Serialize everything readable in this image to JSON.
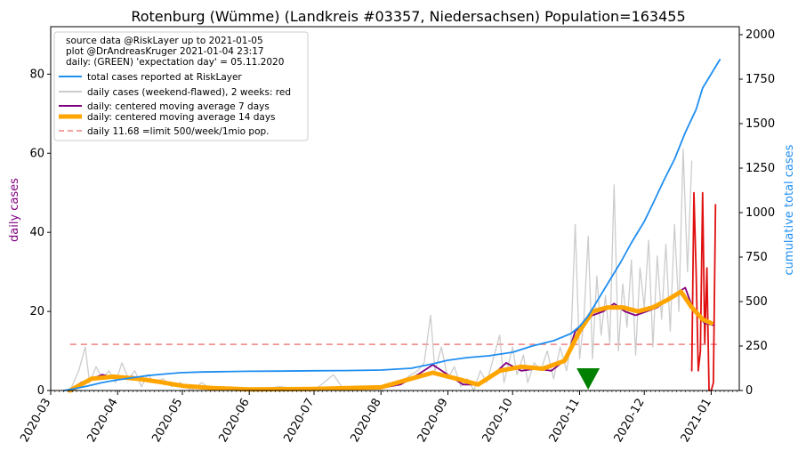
{
  "chart_data": {
    "type": "line",
    "title": "Rotenburg (Wümme) (Landkreis #03357, Niedersachsen) Population=163455",
    "ylabel_left": "daily cases",
    "ylabel_right": "cumulative total cases",
    "xlabel": "",
    "x_start": "2020-03-01",
    "x_end": "2021-01-14",
    "ylim_left": [
      0,
      92
    ],
    "ylim_right": [
      0,
      2045
    ],
    "yticks_left": [
      0,
      20,
      40,
      60,
      80
    ],
    "yticks_right": [
      0,
      250,
      500,
      750,
      1000,
      1250,
      1500,
      1750,
      2000
    ],
    "xticks": [
      "2020-03",
      "2020-04",
      "2020-05",
      "2020-06",
      "2020-07",
      "2020-08",
      "2020-09",
      "2020-10",
      "2020-11",
      "2020-12",
      "2021-01"
    ],
    "legend_position": "top-left",
    "legend_header": [
      "source data @RiskLayer up to 2021-01-05",
      "plot @DrAndreasKruger 2021-01-04 23:17",
      "daily: (GREEN) 'expectation day' = 05.11.2020"
    ],
    "legend": [
      {
        "label": "total cases reported at RiskLayer",
        "color": "#1f8ef1",
        "style": "line"
      },
      {
        "label": "daily cases (weekend-flawed), 2 weeks: red",
        "color": "#cccccc",
        "style": "line"
      },
      {
        "label": "daily: centered moving average 7 days",
        "color": "#800080",
        "style": "line"
      },
      {
        "label": "daily: centered moving average 14 days",
        "color": "#ffa500",
        "style": "thick"
      },
      {
        "label": "daily 11.68 =limit 500/week/1mio pop.",
        "color": "#f08080",
        "style": "dashed"
      }
    ],
    "limit_value": 11.68,
    "expectation_day": "2020-11-05",
    "expectation_marker_color": "#008000",
    "series": [
      {
        "name": "total cases reported at RiskLayer",
        "axis": "right",
        "color": "#1f8ef1",
        "points": [
          [
            "2020-03-07",
            0
          ],
          [
            "2020-03-12",
            10
          ],
          [
            "2020-03-18",
            25
          ],
          [
            "2020-03-25",
            45
          ],
          [
            "2020-04-01",
            60
          ],
          [
            "2020-04-08",
            72
          ],
          [
            "2020-04-15",
            84
          ],
          [
            "2020-04-22",
            92
          ],
          [
            "2020-04-30",
            100
          ],
          [
            "2020-05-10",
            104
          ],
          [
            "2020-05-20",
            106
          ],
          [
            "2020-06-01",
            108
          ],
          [
            "2020-06-15",
            109
          ],
          [
            "2020-07-01",
            111
          ],
          [
            "2020-07-15",
            112
          ],
          [
            "2020-08-01",
            115
          ],
          [
            "2020-08-15",
            125
          ],
          [
            "2020-08-25",
            150
          ],
          [
            "2020-09-01",
            170
          ],
          [
            "2020-09-10",
            185
          ],
          [
            "2020-09-20",
            195
          ],
          [
            "2020-10-01",
            215
          ],
          [
            "2020-10-10",
            250
          ],
          [
            "2020-10-20",
            280
          ],
          [
            "2020-10-28",
            320
          ],
          [
            "2020-11-01",
            360
          ],
          [
            "2020-11-05",
            420
          ],
          [
            "2020-11-10",
            520
          ],
          [
            "2020-11-15",
            620
          ],
          [
            "2020-11-20",
            720
          ],
          [
            "2020-11-25",
            830
          ],
          [
            "2020-12-01",
            950
          ],
          [
            "2020-12-05",
            1050
          ],
          [
            "2020-12-10",
            1180
          ],
          [
            "2020-12-15",
            1300
          ],
          [
            "2020-12-20",
            1450
          ],
          [
            "2020-12-25",
            1580
          ],
          [
            "2020-12-28",
            1700
          ],
          [
            "2021-01-01",
            1780
          ],
          [
            "2021-01-03",
            1820
          ],
          [
            "2021-01-05",
            1860
          ]
        ]
      },
      {
        "name": "daily cases (weekend-flawed), 2 weeks: red",
        "axis": "left",
        "color": "#cccccc",
        "red_from": "2020-12-22",
        "points": [
          [
            "2020-03-10",
            0
          ],
          [
            "2020-03-14",
            5
          ],
          [
            "2020-03-17",
            11
          ],
          [
            "2020-03-19",
            2
          ],
          [
            "2020-03-22",
            6
          ],
          [
            "2020-03-25",
            3
          ],
          [
            "2020-03-28",
            5
          ],
          [
            "2020-03-31",
            2
          ],
          [
            "2020-04-03",
            7
          ],
          [
            "2020-04-06",
            3
          ],
          [
            "2020-04-09",
            5
          ],
          [
            "2020-04-12",
            1
          ],
          [
            "2020-04-15",
            4
          ],
          [
            "2020-04-18",
            2
          ],
          [
            "2020-04-22",
            3
          ],
          [
            "2020-04-26",
            1
          ],
          [
            "2020-04-30",
            2
          ],
          [
            "2020-05-05",
            0
          ],
          [
            "2020-05-10",
            2
          ],
          [
            "2020-05-15",
            0
          ],
          [
            "2020-05-20",
            1
          ],
          [
            "2020-06-01",
            0
          ],
          [
            "2020-06-15",
            1
          ],
          [
            "2020-07-01",
            0
          ],
          [
            "2020-07-10",
            4
          ],
          [
            "2020-07-15",
            0
          ],
          [
            "2020-08-01",
            1
          ],
          [
            "2020-08-10",
            2
          ],
          [
            "2020-08-15",
            4
          ],
          [
            "2020-08-18",
            5
          ],
          [
            "2020-08-21",
            7
          ],
          [
            "2020-08-24",
            19
          ],
          [
            "2020-08-26",
            5
          ],
          [
            "2020-08-29",
            11
          ],
          [
            "2020-09-01",
            3
          ],
          [
            "2020-09-04",
            6
          ],
          [
            "2020-09-07",
            1
          ],
          [
            "2020-09-10",
            3
          ],
          [
            "2020-09-13",
            0
          ],
          [
            "2020-09-16",
            5
          ],
          [
            "2020-09-19",
            2
          ],
          [
            "2020-09-22",
            8
          ],
          [
            "2020-09-25",
            14
          ],
          [
            "2020-09-27",
            2
          ],
          [
            "2020-10-01",
            11
          ],
          [
            "2020-10-03",
            4
          ],
          [
            "2020-10-06",
            9
          ],
          [
            "2020-10-08",
            2
          ],
          [
            "2020-10-11",
            7
          ],
          [
            "2020-10-14",
            5
          ],
          [
            "2020-10-17",
            10
          ],
          [
            "2020-10-20",
            3
          ],
          [
            "2020-10-23",
            11
          ],
          [
            "2020-10-26",
            5
          ],
          [
            "2020-10-28",
            12
          ],
          [
            "2020-10-30",
            42
          ],
          [
            "2020-11-01",
            8
          ],
          [
            "2020-11-03",
            18
          ],
          [
            "2020-11-05",
            39
          ],
          [
            "2020-11-07",
            8
          ],
          [
            "2020-11-09",
            29
          ],
          [
            "2020-11-11",
            14
          ],
          [
            "2020-11-13",
            24
          ],
          [
            "2020-11-15",
            12
          ],
          [
            "2020-11-17",
            52
          ],
          [
            "2020-11-19",
            10
          ],
          [
            "2020-11-21",
            27
          ],
          [
            "2020-11-23",
            16
          ],
          [
            "2020-11-25",
            33
          ],
          [
            "2020-11-27",
            9
          ],
          [
            "2020-11-29",
            31
          ],
          [
            "2020-12-01",
            21
          ],
          [
            "2020-12-03",
            38
          ],
          [
            "2020-12-05",
            11
          ],
          [
            "2020-12-07",
            34
          ],
          [
            "2020-12-09",
            18
          ],
          [
            "2020-12-11",
            37
          ],
          [
            "2020-12-13",
            15
          ],
          [
            "2020-12-15",
            42
          ],
          [
            "2020-12-17",
            20
          ],
          [
            "2020-12-19",
            61
          ],
          [
            "2020-12-21",
            30
          ],
          [
            "2020-12-23",
            58
          ]
        ]
      },
      {
        "name": "daily red (last two weeks)",
        "axis": "left",
        "color": "#e01010",
        "points": [
          [
            "2020-12-23",
            5
          ],
          [
            "2020-12-24",
            50
          ],
          [
            "2020-12-25",
            30
          ],
          [
            "2020-12-26",
            5
          ],
          [
            "2020-12-27",
            10
          ],
          [
            "2020-12-28",
            50
          ],
          [
            "2020-12-29",
            12
          ],
          [
            "2020-12-30",
            31
          ],
          [
            "2020-12-31",
            0
          ],
          [
            "2021-01-01",
            0
          ],
          [
            "2021-01-02",
            2
          ],
          [
            "2021-01-03",
            47
          ]
        ]
      },
      {
        "name": "daily: centered moving average 7 days",
        "axis": "left",
        "color": "#800080",
        "points": [
          [
            "2020-03-10",
            0
          ],
          [
            "2020-03-15",
            2
          ],
          [
            "2020-03-20",
            3
          ],
          [
            "2020-03-25",
            4
          ],
          [
            "2020-04-01",
            3
          ],
          [
            "2020-04-08",
            3.5
          ],
          [
            "2020-04-15",
            2.5
          ],
          [
            "2020-04-22",
            2
          ],
          [
            "2020-05-01",
            1
          ],
          [
            "2020-05-15",
            0.6
          ],
          [
            "2020-06-01",
            0.3
          ],
          [
            "2020-07-01",
            0.4
          ],
          [
            "2020-08-01",
            0.6
          ],
          [
            "2020-08-10",
            1.5
          ],
          [
            "2020-08-18",
            4
          ],
          [
            "2020-08-25",
            6.5
          ],
          [
            "2020-09-01",
            4
          ],
          [
            "2020-09-08",
            1.5
          ],
          [
            "2020-09-15",
            1.5
          ],
          [
            "2020-09-22",
            4
          ],
          [
            "2020-09-28",
            7
          ],
          [
            "2020-10-05",
            5
          ],
          [
            "2020-10-12",
            5.5
          ],
          [
            "2020-10-19",
            5
          ],
          [
            "2020-10-26",
            8
          ],
          [
            "2020-10-30",
            15
          ],
          [
            "2020-11-03",
            17
          ],
          [
            "2020-11-07",
            19
          ],
          [
            "2020-11-12",
            20
          ],
          [
            "2020-11-17",
            22
          ],
          [
            "2020-11-22",
            20
          ],
          [
            "2020-11-27",
            19
          ],
          [
            "2020-12-02",
            20
          ],
          [
            "2020-12-07",
            21
          ],
          [
            "2020-12-12",
            23
          ],
          [
            "2020-12-17",
            25
          ],
          [
            "2020-12-20",
            26
          ],
          [
            "2020-12-24",
            20
          ],
          [
            "2020-12-29",
            17
          ],
          [
            "2021-01-02",
            16.5
          ]
        ]
      },
      {
        "name": "daily: centered moving average 14 days",
        "axis": "left",
        "color": "#ffa500",
        "points": [
          [
            "2020-03-10",
            0
          ],
          [
            "2020-03-20",
            3
          ],
          [
            "2020-03-30",
            3.5
          ],
          [
            "2020-04-10",
            3
          ],
          [
            "2020-04-20",
            2.2
          ],
          [
            "2020-05-01",
            1.2
          ],
          [
            "2020-05-15",
            0.6
          ],
          [
            "2020-06-01",
            0.3
          ],
          [
            "2020-07-01",
            0.4
          ],
          [
            "2020-08-01",
            0.8
          ],
          [
            "2020-08-15",
            3
          ],
          [
            "2020-08-25",
            4.5
          ],
          [
            "2020-09-05",
            3
          ],
          [
            "2020-09-15",
            1.5
          ],
          [
            "2020-09-25",
            5
          ],
          [
            "2020-10-05",
            6
          ],
          [
            "2020-10-15",
            5.5
          ],
          [
            "2020-10-25",
            7.5
          ],
          [
            "2020-11-01",
            15
          ],
          [
            "2020-11-07",
            20
          ],
          [
            "2020-11-14",
            21
          ],
          [
            "2020-11-21",
            21
          ],
          [
            "2020-11-28",
            20
          ],
          [
            "2020-12-05",
            21
          ],
          [
            "2020-12-12",
            23
          ],
          [
            "2020-12-18",
            25
          ],
          [
            "2020-12-23",
            21
          ],
          [
            "2020-12-28",
            18
          ],
          [
            "2021-01-01",
            17
          ]
        ]
      }
    ]
  }
}
